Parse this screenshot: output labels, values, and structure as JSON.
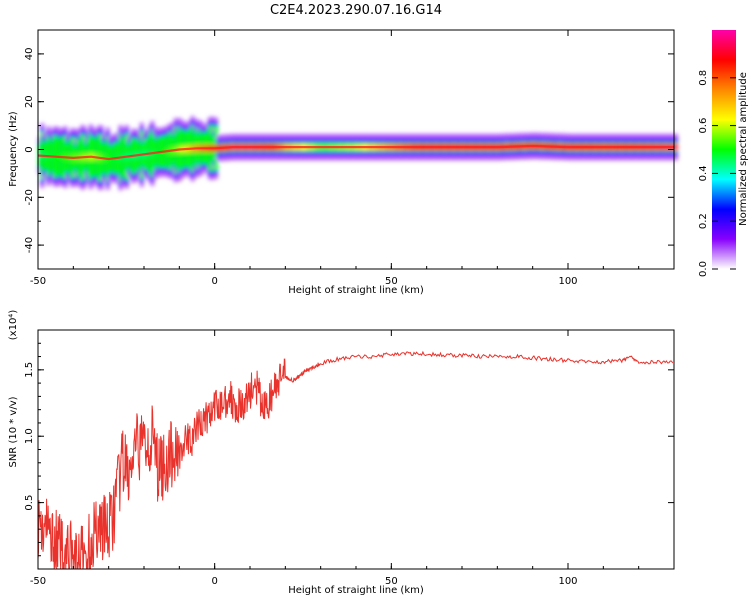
{
  "figure": {
    "title": "C2E4.2023.290.07.16.G14"
  },
  "chart_data": [
    {
      "type": "heatmap",
      "xlabel": "Height of straight line (km)",
      "ylabel": "Frequency (Hz)",
      "xlim": [
        -50,
        130
      ],
      "ylim": [
        -50,
        50
      ],
      "x_ticks": [
        "-50",
        "0",
        "50",
        "100"
      ],
      "y_ticks": [
        "40",
        "20",
        "0",
        "-20",
        "-40"
      ],
      "colorbar": {
        "label": "Normalized spectral amplitude",
        "range": [
          0,
          1
        ],
        "ticks": [
          "0.0",
          "0.2",
          "0.4",
          "0.6",
          "0.8"
        ],
        "colors": [
          "#ffffff",
          "#8800ff",
          "#0000ff",
          "#00ffff",
          "#00ff00",
          "#ffff00",
          "#ff8800",
          "#ff0000",
          "#ff00aa"
        ]
      },
      "ridge": {
        "x": [
          -50,
          -45,
          -40,
          -35,
          -30,
          -25,
          -20,
          -15,
          -10,
          -5,
          0,
          5,
          10,
          15,
          20,
          30,
          40,
          50,
          60,
          70,
          80,
          90,
          100,
          110,
          120,
          130
        ],
        "center_hz": [
          -2.5,
          -3,
          -3.5,
          -3,
          -4,
          -3,
          -2,
          -1,
          0,
          0.5,
          0.5,
          1,
          1,
          1,
          1,
          1,
          1,
          1,
          1,
          1,
          1,
          1.5,
          1,
          1,
          1,
          1
        ],
        "amplitude": [
          0.45,
          0.5,
          0.55,
          0.6,
          0.5,
          0.45,
          0.45,
          0.5,
          0.6,
          0.75,
          0.85,
          0.95,
          0.95,
          0.9,
          0.7,
          0.55,
          0.6,
          0.75,
          0.9,
          0.9,
          0.9,
          0.85,
          0.9,
          0.85,
          0.9,
          0.95
        ]
      }
    },
    {
      "type": "line",
      "xlabel": "Height of straight line (km)",
      "ylabel": "SNR (10 * v/v)",
      "y_exponent": "(x10⁴)",
      "xlim": [
        -50,
        130
      ],
      "ylim": [
        0,
        1.8
      ],
      "x_ticks": [
        "-50",
        "0",
        "50",
        "100"
      ],
      "y_ticks": [
        "1.5",
        "1.0",
        "0.5"
      ],
      "color": "#e8322b",
      "series": [
        {
          "x": [
            -50,
            -48,
            -46,
            -44,
            -42,
            -40,
            -38,
            -36,
            -34,
            -32,
            -30,
            -28,
            -26,
            -24,
            -22,
            -20,
            -18,
            -16,
            -14,
            -12,
            -10,
            -8,
            -6,
            -4,
            -2,
            0,
            2,
            4,
            6,
            8,
            10,
            12,
            14,
            16,
            18,
            20,
            22,
            24,
            26,
            28,
            30,
            35,
            40,
            45,
            50,
            55,
            60,
            65,
            70,
            75,
            80,
            85,
            90,
            95,
            100,
            105,
            110,
            115,
            118,
            120,
            125,
            130
          ],
          "y": [
            0.35,
            0.3,
            0.25,
            0.15,
            0.12,
            0.08,
            0.05,
            0.12,
            0.3,
            0.35,
            0.28,
            0.5,
            0.8,
            0.7,
            0.9,
            0.95,
            1.0,
            0.75,
            0.8,
            0.85,
            0.9,
            0.95,
            1.0,
            1.1,
            1.15,
            1.2,
            1.25,
            1.3,
            1.25,
            1.2,
            1.35,
            1.35,
            1.2,
            1.3,
            1.4,
            1.45,
            1.42,
            1.45,
            1.5,
            1.52,
            1.55,
            1.58,
            1.6,
            1.6,
            1.62,
            1.62,
            1.62,
            1.61,
            1.61,
            1.6,
            1.6,
            1.6,
            1.59,
            1.58,
            1.57,
            1.56,
            1.56,
            1.57,
            1.6,
            1.56,
            1.56,
            1.55
          ]
        }
      ]
    }
  ]
}
